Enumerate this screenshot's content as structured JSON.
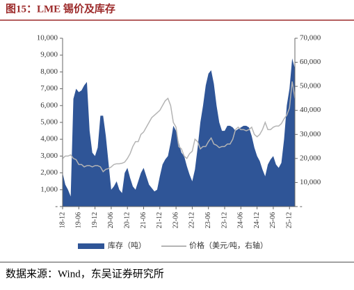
{
  "chart_data": {
    "type": "area-line",
    "title": "图15：LME 锡价及库存",
    "source": "数据来源：Wind，东吴证券研究所",
    "categories": [
      "18-12",
      null,
      null,
      null,
      null,
      null,
      "19-06",
      null,
      null,
      null,
      null,
      null,
      "19-12",
      null,
      null,
      null,
      null,
      null,
      "20-06",
      null,
      null,
      null,
      null,
      null,
      "20-12",
      null,
      null,
      null,
      null,
      null,
      "21-06",
      null,
      null,
      null,
      null,
      null,
      "21-12",
      null,
      null,
      null,
      null,
      null,
      "22-06",
      null,
      null,
      null,
      null,
      null,
      "22-12",
      null,
      null,
      null,
      null,
      null,
      "23-06",
      null,
      null,
      null,
      null,
      null,
      "23-12",
      null,
      null,
      null,
      null,
      null,
      "24-06",
      null,
      null,
      null,
      null,
      null,
      "24-12",
      null,
      null,
      null,
      null,
      null,
      "25-06",
      null,
      null,
      null,
      null,
      null,
      "25-12",
      null,
      null
    ],
    "ylim": [
      0,
      10000
    ],
    "yticks": [
      {
        "value": 0,
        "label": "-"
      },
      {
        "value": 1000,
        "label": "1,000"
      },
      {
        "value": 2000,
        "label": "2,000"
      },
      {
        "value": 3000,
        "label": "3,000"
      },
      {
        "value": 4000,
        "label": "4,000"
      },
      {
        "value": 5000,
        "label": "5,000"
      },
      {
        "value": 6000,
        "label": "6,000"
      },
      {
        "value": 7000,
        "label": "7,000"
      },
      {
        "value": 8000,
        "label": "8,000"
      },
      {
        "value": 9000,
        "label": "9,000"
      },
      {
        "value": 10000,
        "label": "10,000"
      }
    ],
    "y2lim": [
      0,
      70000
    ],
    "y2ticks": [
      {
        "value": 0,
        "label": "-"
      },
      {
        "value": 10000,
        "label": "10,000"
      },
      {
        "value": 20000,
        "label": "20,000"
      },
      {
        "value": 30000,
        "label": "30,000"
      },
      {
        "value": 40000,
        "label": "40,000"
      },
      {
        "value": 50000,
        "label": "50,000"
      },
      {
        "value": 60000,
        "label": "60,000"
      },
      {
        "value": 70000,
        "label": "70,000"
      }
    ],
    "series": [
      {
        "name": "库存（吨）",
        "type": "area",
        "color": "#2f5597",
        "values": [
          2000,
          1300,
          1000,
          600,
          6400,
          7000,
          6800,
          6900,
          7200,
          7400,
          4500,
          3200,
          3000,
          3500,
          5400,
          5400,
          4200,
          2600,
          1000,
          1200,
          1500,
          1000,
          800,
          2000,
          2300,
          1700,
          1200,
          1000,
          1500,
          2000,
          2300,
          1800,
          1300,
          1100,
          900,
          1000,
          1800,
          2500,
          2800,
          3000,
          3800,
          4800,
          4500,
          3800,
          3200,
          3000,
          2400,
          1900,
          1500,
          2200,
          3500,
          5000,
          6000,
          7200,
          7900,
          8100,
          7300,
          6000,
          5000,
          4500,
          4500,
          4800,
          4800,
          4700,
          4500,
          4600,
          4700,
          4800,
          4800,
          4700,
          4200,
          3500,
          3000,
          2700,
          2200,
          1800,
          2500,
          2800,
          3000,
          2500,
          2300,
          2600,
          4000,
          6000,
          7000,
          8800,
          8200
        ]
      },
      {
        "name": "价格（美元/吨，右轴）",
        "type": "line",
        "axis": "y2",
        "color": "#b4b4b4",
        "values": [
          20000,
          21000,
          21000,
          21500,
          20000,
          19500,
          17500,
          17500,
          16500,
          17000,
          17000,
          16500,
          17000,
          17000,
          16500,
          14500,
          15500,
          15800,
          16500,
          17500,
          17800,
          17800,
          18000,
          18500,
          20000,
          22000,
          25000,
          27000,
          27000,
          30000,
          31000,
          33000,
          35000,
          37000,
          38000,
          39000,
          40000,
          42000,
          44000,
          45000,
          42000,
          35000,
          33000,
          25000,
          24000,
          21000,
          20000,
          22000,
          23000,
          28000,
          27000,
          24000,
          25000,
          25000,
          27000,
          28500,
          26000,
          25500,
          24500,
          25000,
          25000,
          26000,
          26000,
          28000,
          32000,
          33000,
          32000,
          32000,
          31500,
          32000,
          33000,
          30000,
          29000,
          30000,
          32000,
          35000,
          32000,
          32000,
          33000,
          33500,
          33500,
          34500,
          36500,
          38000,
          41000,
          52000,
          45000
        ]
      }
    ]
  }
}
